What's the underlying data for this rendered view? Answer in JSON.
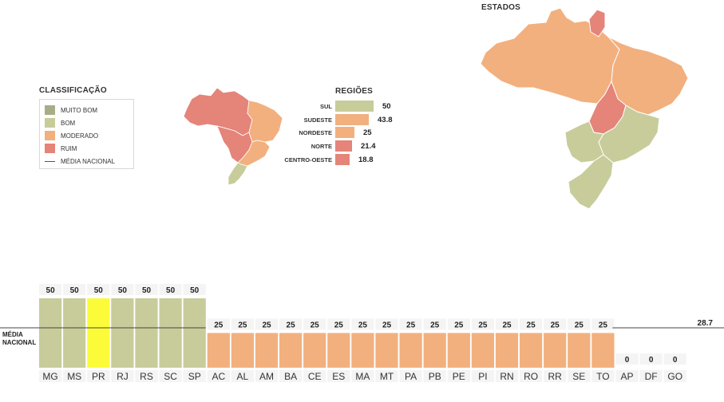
{
  "legend": {
    "title": "CLASSIFICAÇÃO",
    "items": [
      {
        "label": "MUITO BOM",
        "color": "#a8ad88"
      },
      {
        "label": "BOM",
        "color": "#c8cc9a"
      },
      {
        "label": "MODERADO",
        "color": "#f2b07e"
      },
      {
        "label": "RUIM",
        "color": "#e58479"
      }
    ],
    "line_label": "MÉDIA NACIONAL"
  },
  "regions": {
    "title": "REGIÕES",
    "items": [
      {
        "name": "SUL",
        "value": "50",
        "color": "#c8cc9a"
      },
      {
        "name": "SUDESTE",
        "value": "43.8",
        "color": "#f2b07e"
      },
      {
        "name": "NORDESTE",
        "value": "25",
        "color": "#f2b07e"
      },
      {
        "name": "NORTE",
        "value": "21.4",
        "color": "#e58479"
      },
      {
        "name": "CENTRO-OESTE",
        "value": "18.8",
        "color": "#e58479"
      }
    ]
  },
  "states_title": "ESTADOS",
  "chart_data": {
    "type": "bar",
    "categories": [
      "MG",
      "MS",
      "PR",
      "RJ",
      "RS",
      "SC",
      "SP",
      "AC",
      "AL",
      "AM",
      "BA",
      "CE",
      "ES",
      "MA",
      "MT",
      "PA",
      "PB",
      "PE",
      "PI",
      "RN",
      "RO",
      "RR",
      "SE",
      "TO",
      "AP",
      "DF",
      "GO"
    ],
    "values": [
      50,
      50,
      50,
      50,
      50,
      50,
      50,
      25,
      25,
      25,
      25,
      25,
      25,
      25,
      25,
      25,
      25,
      25,
      25,
      25,
      25,
      25,
      25,
      25,
      0,
      0,
      0
    ],
    "reference_line": {
      "label": "MÉDIA NACIONAL",
      "value": 28.7
    },
    "ylim": [
      0,
      50
    ],
    "colors": {
      "bom": "#c8cc9a",
      "moderado": "#f2b07e",
      "highlight": "#fbfb3a"
    },
    "highlight": "PR"
  }
}
